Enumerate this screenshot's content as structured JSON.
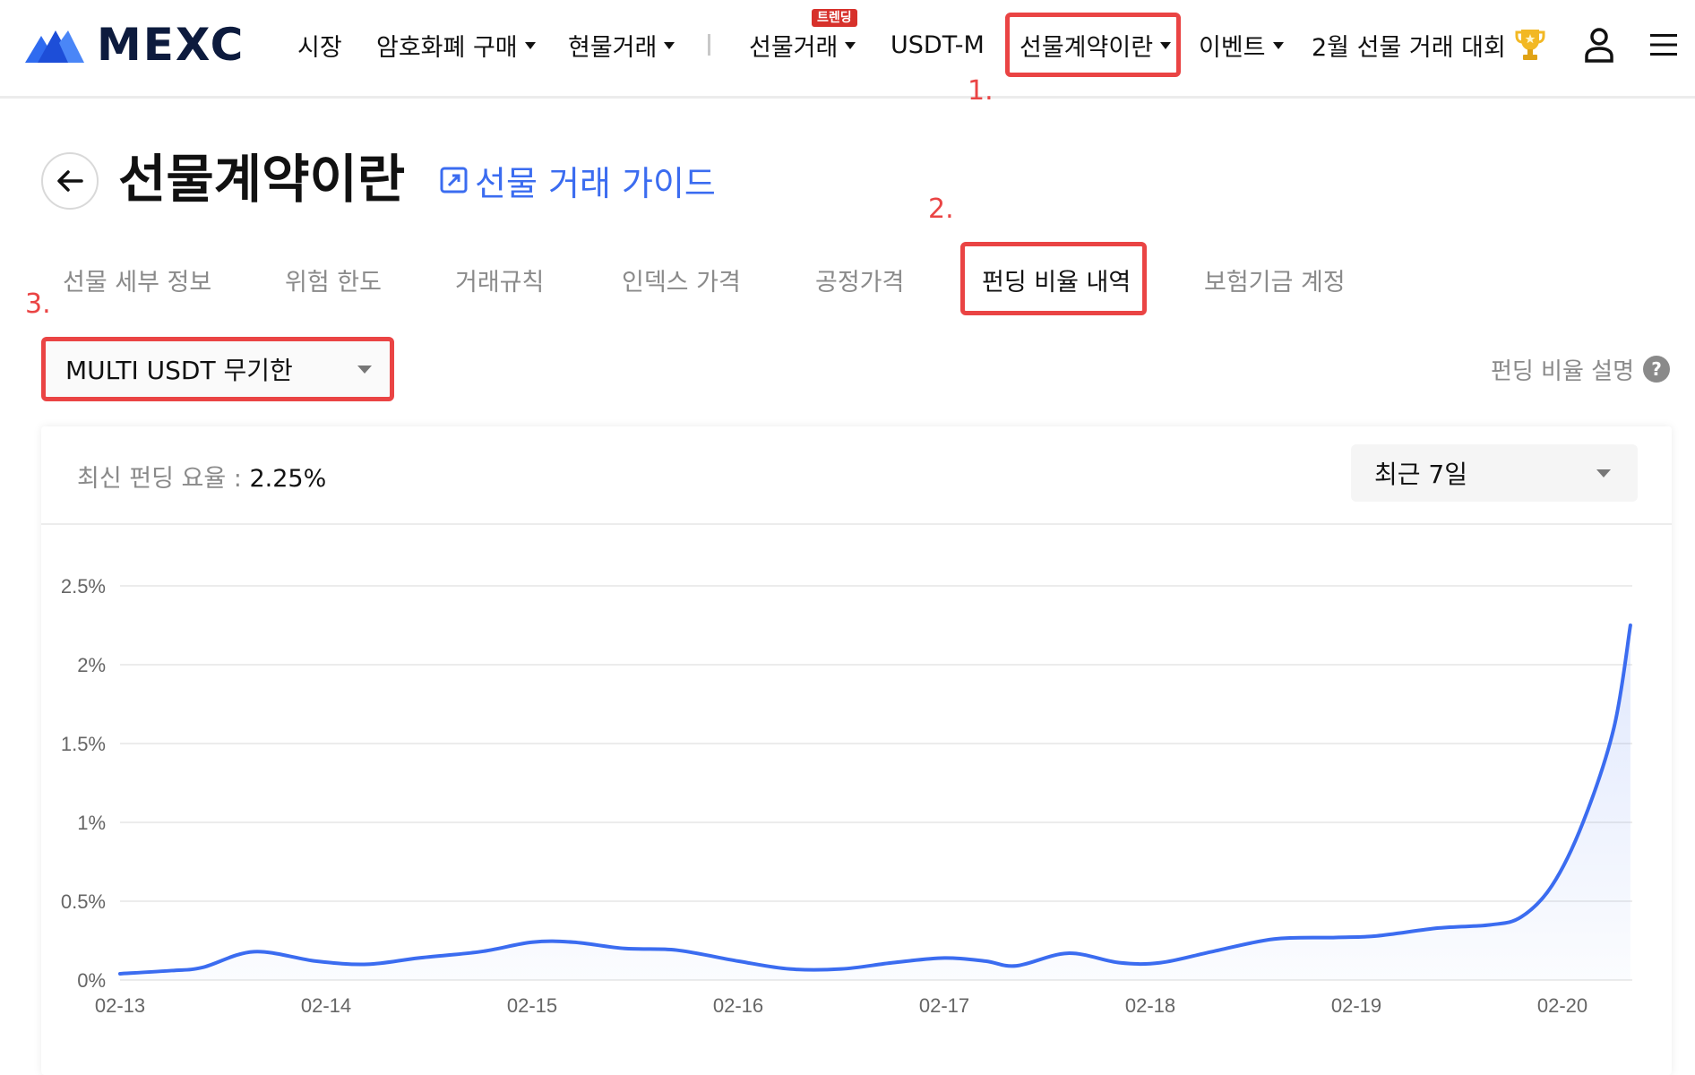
{
  "header": {
    "logo_text": "MEXC",
    "nav": [
      {
        "label": "시장",
        "caret": false
      },
      {
        "label": "암호화폐 구매",
        "caret": true
      },
      {
        "label": "현물거래",
        "caret": true
      },
      {
        "label": "선물거래",
        "caret": true
      },
      {
        "label": "USDT-M",
        "caret": false
      },
      {
        "label": "선물계약이란",
        "caret": true
      },
      {
        "label": "이벤트",
        "caret": true
      },
      {
        "label": "2월 선물 거래 대회",
        "caret": false
      }
    ],
    "nav_separator": "|",
    "badge": "트렌딩",
    "trophy_icon": "trophy-icon",
    "user_icon": "user-icon",
    "menu_icon": "hamburger-menu-icon"
  },
  "annotations": {
    "step1": "1.",
    "step2": "2.",
    "step3": "3.",
    "highlight_color": "#ea4444"
  },
  "page": {
    "title": "선물계약이란",
    "guide_link": "선물 거래 가이드",
    "accent_color": "#3b6cf0"
  },
  "tabs": [
    {
      "label": "선물 세부 정보",
      "active": false
    },
    {
      "label": "위험 한도",
      "active": false
    },
    {
      "label": "거래규칙",
      "active": false
    },
    {
      "label": "인덱스 가격",
      "active": false
    },
    {
      "label": "공정가격",
      "active": false
    },
    {
      "label": "펀딩 비율 내역",
      "active": true
    },
    {
      "label": "보험기금 계정",
      "active": false
    }
  ],
  "contract_select": {
    "value": "MULTI USDT 무기한"
  },
  "funding_explain": {
    "label": "펀딩 비율 설명",
    "icon": "?"
  },
  "card": {
    "latest_label": "최신 펀딩 요율 :",
    "latest_value": "2.25%",
    "period": "최근 7일"
  },
  "chart_data": {
    "type": "area",
    "x": [
      "02-13",
      "02-14",
      "02-15",
      "02-16",
      "02-17",
      "02-18",
      "02-19",
      "02-20"
    ],
    "y_ticks": [
      "0%",
      "0.5%",
      "1%",
      "1.5%",
      "2%",
      "2.5%"
    ],
    "ylim": [
      0,
      2.5
    ],
    "grid": true,
    "line_color": "#3b6cf0",
    "points": [
      [
        0.0,
        0.04
      ],
      [
        0.25,
        0.06
      ],
      [
        0.4,
        0.08
      ],
      [
        0.65,
        0.18
      ],
      [
        0.95,
        0.12
      ],
      [
        1.2,
        0.1
      ],
      [
        1.45,
        0.14
      ],
      [
        1.75,
        0.18
      ],
      [
        2.0,
        0.24
      ],
      [
        2.2,
        0.24
      ],
      [
        2.45,
        0.2
      ],
      [
        2.7,
        0.19
      ],
      [
        3.0,
        0.12
      ],
      [
        3.25,
        0.07
      ],
      [
        3.5,
        0.07
      ],
      [
        3.75,
        0.11
      ],
      [
        4.0,
        0.14
      ],
      [
        4.2,
        0.12
      ],
      [
        4.35,
        0.09
      ],
      [
        4.6,
        0.17
      ],
      [
        4.85,
        0.11
      ],
      [
        5.05,
        0.11
      ],
      [
        5.3,
        0.18
      ],
      [
        5.6,
        0.26
      ],
      [
        5.9,
        0.27
      ],
      [
        6.1,
        0.28
      ],
      [
        6.4,
        0.33
      ],
      [
        6.65,
        0.35
      ],
      [
        6.8,
        0.4
      ],
      [
        6.95,
        0.6
      ],
      [
        7.1,
        1.0
      ],
      [
        7.25,
        1.6
      ],
      [
        7.33,
        2.25
      ]
    ]
  }
}
